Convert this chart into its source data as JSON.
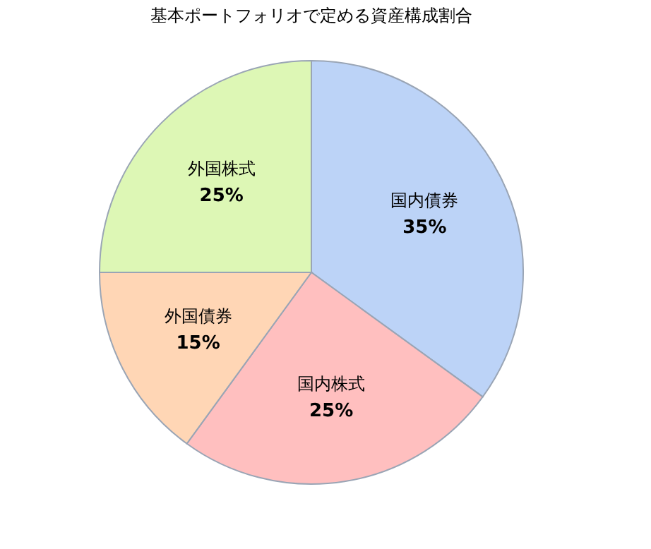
{
  "chart_data": {
    "type": "pie",
    "title": "基本ポートフォリオで定める資産構成割合",
    "categories": [
      "国内債券",
      "国内株式",
      "外国債券",
      "外国株式"
    ],
    "values": [
      35,
      25,
      15,
      25
    ],
    "value_labels": [
      "35%",
      "25%",
      "15%",
      "25%"
    ],
    "colors": [
      "#bcd3f7",
      "#ffbfbf",
      "#ffd6b5",
      "#ddf7b5"
    ],
    "legend": false
  }
}
